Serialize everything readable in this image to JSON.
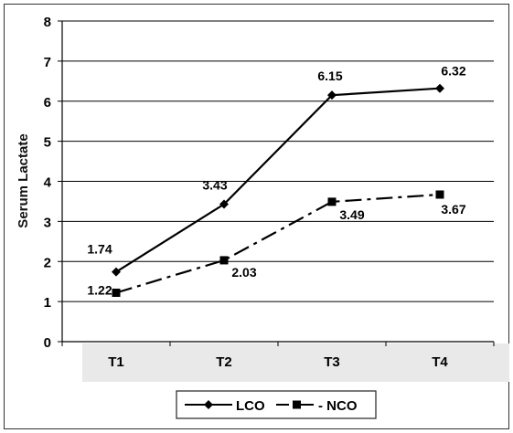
{
  "chart_data": {
    "type": "line",
    "title": "",
    "xlabel": "",
    "ylabel": "Serum Lactate",
    "categories": [
      "T1",
      "T2",
      "T3",
      "T4"
    ],
    "ylim": [
      0,
      8
    ],
    "yticks": [
      "0",
      "1",
      "2",
      "3",
      "4",
      "5",
      "6",
      "7",
      "8"
    ],
    "grid": true,
    "legend_position": "bottom-center",
    "series": [
      {
        "name": "LCO",
        "values": [
          1.74,
          3.43,
          6.15,
          6.32
        ],
        "labels": [
          "1.74",
          "3.43",
          "6.15",
          "6.32"
        ],
        "marker": "diamond",
        "line_style": "solid",
        "color": "#000000"
      },
      {
        "name": "NCO",
        "values": [
          1.22,
          2.03,
          3.49,
          3.67
        ],
        "labels": [
          "1.22",
          "2.03",
          "3.49",
          "3.67"
        ],
        "marker": "square",
        "line_style": "dash-dot",
        "color": "#000000"
      }
    ],
    "legend_labels": [
      "LCO",
      "- NCO"
    ]
  }
}
